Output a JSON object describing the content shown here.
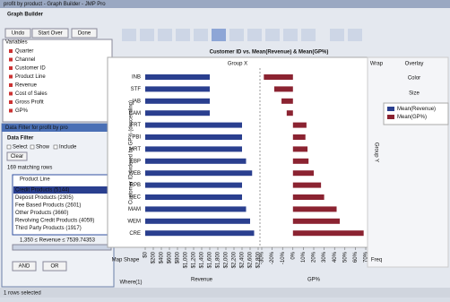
{
  "window": {
    "title": "profit by product - Graph Builder - JMP Pro"
  },
  "graph_builder": {
    "header": "Graph Builder",
    "buttons": [
      "Undo",
      "Start Over",
      "Done"
    ],
    "variables_label": "Variables",
    "variables": [
      "Quarter",
      "Channel",
      "Customer ID",
      "Product Line",
      "Revenue",
      "Cost of Sales",
      "Gross Profit",
      "GP%"
    ]
  },
  "data_filter": {
    "window_title": "Data Filter for profit by pro",
    "header": "Data Filter",
    "options": [
      "Select",
      "Show",
      "Include"
    ],
    "clear": "Clear",
    "matching": "169 matching rows",
    "column": "Product Line",
    "items": [
      "Credit Products (5144)",
      "Deposit Products (2305)",
      "Fee Based Products (2601)",
      "Other Products (3660)",
      "Revolving Credit Products (4059)",
      "Third Party Products (1917)"
    ],
    "range": "1,350 ≤ Revenue ≤ 7539.74353",
    "buttons": [
      "AND",
      "OR"
    ]
  },
  "zones": {
    "group_x": "Group X",
    "wrap": "Wrap",
    "overlay": "Overlay",
    "color": "Color",
    "size": "Size",
    "group_y": "Group Y",
    "map_shape": "Map Shape",
    "freq": "Freq",
    "where": "Where(1)"
  },
  "status": "1 rows selected",
  "chart_data": {
    "type": "bar",
    "orientation": "horizontal",
    "title": "Customer ID vs. Mean(Revenue) & Mean(GP%)",
    "y_label": "Customer ID ordered by GP% (descending)",
    "categories": [
      "INB",
      "STF",
      "IAB",
      "CAM",
      "FRT",
      "PBI",
      "MRT",
      "EBP",
      "WEB",
      "RPB",
      "HEC",
      "MAM",
      "WEM",
      "CRE"
    ],
    "series": [
      {
        "name": "Mean(Revenue)",
        "color": "#2a3f8f",
        "x_label": "Revenue",
        "values": [
          1600,
          1600,
          1600,
          1600,
          2400,
          2400,
          2400,
          2500,
          2650,
          2400,
          2400,
          2500,
          2600,
          2700
        ],
        "xlim": [
          0,
          2800
        ],
        "xticks": [
          {
            "value": 0,
            "label": "$0"
          },
          {
            "value": 200,
            "label": "$200"
          },
          {
            "value": 400,
            "label": "$400"
          },
          {
            "value": 600,
            "label": "$600"
          },
          {
            "value": 800,
            "label": "$800"
          },
          {
            "value": 1000,
            "label": "$1,000"
          },
          {
            "value": 1200,
            "label": "$1,200"
          },
          {
            "value": 1400,
            "label": "$1,400"
          },
          {
            "value": 1600,
            "label": "$1,600"
          },
          {
            "value": 1800,
            "label": "$1,800"
          },
          {
            "value": 2000,
            "label": "$2,000"
          },
          {
            "value": 2200,
            "label": "$2,200"
          },
          {
            "value": 2400,
            "label": "$2,400"
          },
          {
            "value": 2600,
            "label": "$2,600"
          },
          {
            "value": 2800,
            "label": "$2,800"
          }
        ]
      },
      {
        "name": "Mean(GP%)",
        "color": "#8b2331",
        "x_label": "GP%",
        "values": [
          -28,
          -18,
          -11,
          -6,
          13,
          12,
          14,
          15,
          20,
          27,
          30,
          42,
          45,
          68
        ],
        "xlim": [
          -30,
          70
        ],
        "xticks": [
          {
            "value": -30,
            "label": "-30%"
          },
          {
            "value": -20,
            "label": "-20%"
          },
          {
            "value": -10,
            "label": "-10%"
          },
          {
            "value": 0,
            "label": "0%"
          },
          {
            "value": 10,
            "label": "10%"
          },
          {
            "value": 20,
            "label": "20%"
          },
          {
            "value": 30,
            "label": "30%"
          },
          {
            "value": 40,
            "label": "40%"
          },
          {
            "value": 50,
            "label": "50%"
          },
          {
            "value": 60,
            "label": "60%"
          },
          {
            "value": 70,
            "label": "70%"
          }
        ]
      }
    ]
  }
}
